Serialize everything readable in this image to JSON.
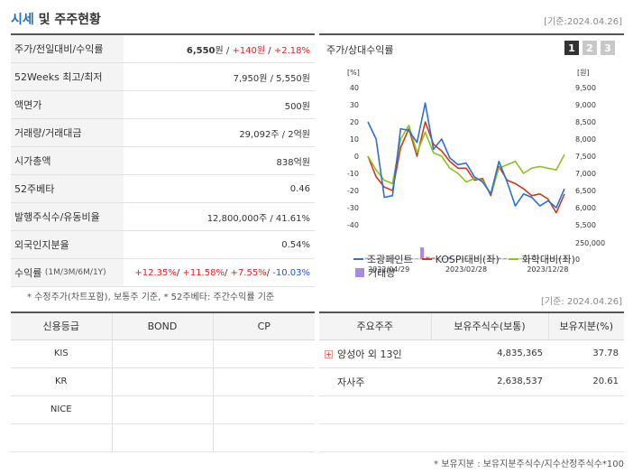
{
  "header": {
    "title_part1": "시세",
    "title_part2": "및 주주현황",
    "base_date": "[기준:2024.04.26]"
  },
  "info": {
    "rows": [
      {
        "label": "주가/전일대비/수익률",
        "price": "6,550",
        "unit1": "원",
        "sep1": " / ",
        "change": "+140원",
        "sep2": " / ",
        "rate": "+2.18%"
      },
      {
        "label": "52Weeks 최고/최저",
        "value": "7,950원 / 5,550원"
      },
      {
        "label": "액면가",
        "value": "500원"
      },
      {
        "label": "거래량/거래대금",
        "value": "29,092주 / 2억원"
      },
      {
        "label": "시가총액",
        "value": "838억원"
      },
      {
        "label": "52주베타",
        "value": "0.46"
      },
      {
        "label": "발행주식수/유동비율",
        "value": "12,800,000주 / 41.61%"
      },
      {
        "label": "외국인지분율",
        "value": "0.54%"
      },
      {
        "label": "수익률",
        "label_sub": "(1M/3M/6M/1Y)",
        "r1": "+12.35%",
        "r2": "+11.58%",
        "r3": "+7.55%",
        "r4": "-10.03%"
      }
    ],
    "footnote": "* 수정주가(차트포함), 보통주 기준, * 52주베타: 주간수익률 기준"
  },
  "chart_panel": {
    "title": "주가/상대수익률",
    "tabs": [
      "1",
      "2",
      "3"
    ],
    "active_tab": "1",
    "legend": {
      "s1": "조광페인트",
      "s2": "KOSPI대비(좌)",
      "s3": "화학대비(좌)",
      "s4": "거래량"
    },
    "colors": {
      "s1": "#2e6fd0",
      "s2": "#cc3a1e",
      "s3": "#8dc21f",
      "volume": "#a78be0"
    }
  },
  "chart_data": {
    "type": "line",
    "x_ticks": [
      "2022/04/29",
      "2023/02/28",
      "2023/12/28"
    ],
    "left_axis": {
      "unit": "[%]",
      "ticks": [
        40,
        30,
        20,
        10,
        0,
        -10,
        -20,
        -30,
        -40
      ],
      "range": [
        -40,
        40
      ]
    },
    "right_axis": {
      "unit": "[원]",
      "ticks": [
        "9,500",
        "9,000",
        "8,500",
        "8,000",
        "7,500",
        "7,000",
        "6,500",
        "6,000",
        "5,500"
      ],
      "range": [
        5500,
        9500
      ]
    },
    "volume_axis": {
      "ticks": [
        "250,000",
        "0"
      ],
      "range": [
        0,
        250000
      ]
    },
    "series": [
      {
        "name": "조광페인트",
        "axis": "left",
        "values": [
          20,
          10,
          -24,
          -23,
          16,
          15,
          8,
          31,
          4,
          10,
          -1,
          -5,
          -4,
          -12,
          -15,
          -22,
          -3,
          -15,
          -29,
          -22,
          -24,
          -29,
          -26,
          -30,
          -19
        ]
      },
      {
        "name": "KOSPI대비(좌)",
        "axis": "left",
        "values": [
          0,
          -12,
          -18,
          -20,
          5,
          16,
          0,
          20,
          7,
          3,
          -3,
          -7,
          -7,
          -14,
          -13,
          -23,
          -6,
          -14,
          -16,
          -19,
          -23,
          -22,
          -25,
          -33,
          -22
        ]
      },
      {
        "name": "화학대비(좌)",
        "axis": "left",
        "values": [
          0,
          -8,
          -14,
          -16,
          10,
          18,
          2,
          14,
          2,
          0,
          -7,
          -10,
          -15,
          -13,
          -14,
          -22,
          -7,
          -5,
          -3,
          -10,
          -7,
          -6,
          -7,
          -8,
          1
        ]
      }
    ],
    "volume": [
      20000,
      5000,
      15000,
      3000,
      10000,
      20000,
      5000,
      8000,
      15000,
      10000,
      180000,
      35000,
      25000,
      6000,
      10000,
      30000,
      3000,
      5000,
      15000,
      8000,
      10000,
      3000,
      5000,
      12000,
      20000,
      15000,
      8000,
      5000,
      10000,
      6000,
      12000,
      5000,
      3000,
      8000,
      5000,
      12000,
      18000
    ]
  },
  "credit": {
    "headers": [
      "신용등급",
      "BOND",
      "CP"
    ],
    "rows": [
      {
        "agency": "KIS",
        "bond": "",
        "cp": ""
      },
      {
        "agency": "KR",
        "bond": "",
        "cp": ""
      },
      {
        "agency": "NICE",
        "bond": "",
        "cp": ""
      },
      {
        "agency": "",
        "bond": "",
        "cp": ""
      }
    ]
  },
  "holders": {
    "base_date": "[기준: 2024.04.26]",
    "headers": [
      "주요주주",
      "보유주식수(보통)",
      "보유지분(%)"
    ],
    "rows": [
      {
        "name": "양성아 외 13인",
        "shares": "4,835,365",
        "pct": "37.78",
        "expandable": true
      },
      {
        "name": "자사주",
        "shares": "2,638,537",
        "pct": "20.61",
        "expandable": false
      },
      {
        "name": "",
        "shares": "",
        "pct": ""
      },
      {
        "name": "",
        "shares": "",
        "pct": ""
      }
    ],
    "footnote": "* 보유지분 : 보유지분주식수/지수산정주식수*100"
  }
}
